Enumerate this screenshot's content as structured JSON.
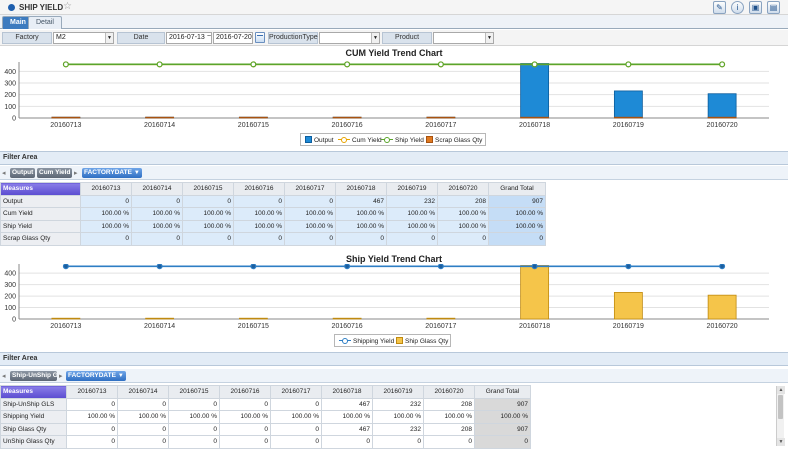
{
  "app": {
    "title": "SHIP YIELD"
  },
  "toolbar": {
    "icons": [
      "edit-icon",
      "info-icon",
      "save-icon",
      "folder-icon"
    ]
  },
  "tabs": [
    {
      "label": "Main",
      "active": true
    },
    {
      "label": "Detail",
      "active": false
    }
  ],
  "filters": {
    "factory_label": "Factory",
    "factory_value": "M2",
    "date_label": "Date",
    "date_from": "2016-07-13",
    "date_sep": "~",
    "date_to": "2016-07-20",
    "production_type_label": "ProductionType",
    "production_type_value": "",
    "product_label": "Product",
    "product_value": ""
  },
  "colors": {
    "output_bar": "#1e8ad6",
    "cum_yield_line": "#e8a400",
    "ship_yield_line": "#5aa52b",
    "scrap_bar": "#e07a20",
    "shipping_yield_line": "#2e7ec4",
    "ship_glass_bar": "#f5c54a",
    "measures_header": "#6a5bd8"
  },
  "chart_data": [
    {
      "type": "bar",
      "title": "CUM Yield Trend Chart",
      "categories": [
        "20160713",
        "20160714",
        "20160715",
        "20160716",
        "20160717",
        "20160718",
        "20160719",
        "20160720"
      ],
      "yticks": [
        0,
        100,
        200,
        300,
        400
      ],
      "ylim": [
        0,
        480
      ],
      "grid": true,
      "legend_position": "bottom",
      "series": [
        {
          "name": "Output",
          "kind": "bar",
          "values": [
            0,
            0,
            0,
            0,
            0,
            467,
            232,
            208
          ]
        },
        {
          "name": "Cum Yield",
          "kind": "line",
          "values": [
            100,
            100,
            100,
            100,
            100,
            100,
            100,
            100
          ]
        },
        {
          "name": "Ship Yield",
          "kind": "line",
          "values": [
            100,
            100,
            100,
            100,
            100,
            100,
            100,
            100
          ]
        },
        {
          "name": "Scrap Glass Qty",
          "kind": "bar",
          "values": [
            0,
            0,
            0,
            0,
            0,
            0,
            0,
            0
          ]
        }
      ]
    },
    {
      "type": "bar",
      "title": "Ship Yield Trend Chart",
      "categories": [
        "20160713",
        "20160714",
        "20160715",
        "20160716",
        "20160717",
        "20160718",
        "20160719",
        "20160720"
      ],
      "yticks": [
        0,
        100,
        200,
        300,
        400
      ],
      "ylim": [
        0,
        480
      ],
      "grid": true,
      "legend_position": "bottom",
      "series": [
        {
          "name": "Shipping Yield",
          "kind": "line",
          "values": [
            100,
            100,
            100,
            100,
            100,
            100,
            100,
            100
          ]
        },
        {
          "name": "Ship Glass Qty",
          "kind": "bar",
          "values": [
            0,
            0,
            0,
            0,
            0,
            467,
            232,
            208
          ]
        }
      ]
    }
  ],
  "section1": {
    "filter_area_label": "Filter Area",
    "chips": [
      "Output",
      "Cum Yield"
    ],
    "dim_chip": "FACTORYDATE",
    "measures_label": "Measures",
    "columns": [
      "20160713",
      "20160714",
      "20160715",
      "20160716",
      "20160717",
      "20160718",
      "20160719",
      "20160720",
      "Grand Total"
    ],
    "rows": [
      {
        "label": "Output",
        "values": [
          "0",
          "0",
          "0",
          "0",
          "0",
          "467",
          "232",
          "208",
          "907"
        ]
      },
      {
        "label": "Cum Yield",
        "values": [
          "100.00 %",
          "100.00 %",
          "100.00 %",
          "100.00 %",
          "100.00 %",
          "100.00 %",
          "100.00 %",
          "100.00 %",
          "100.00 %"
        ]
      },
      {
        "label": "Ship Yield",
        "values": [
          "100.00 %",
          "100.00 %",
          "100.00 %",
          "100.00 %",
          "100.00 %",
          "100.00 %",
          "100.00 %",
          "100.00 %",
          "100.00 %"
        ]
      },
      {
        "label": "Scrap Glass Qty",
        "values": [
          "0",
          "0",
          "0",
          "0",
          "0",
          "0",
          "0",
          "0",
          "0"
        ]
      }
    ]
  },
  "section2": {
    "filter_area_label": "Filter Area",
    "chips": [
      "Ship-UnShip GLS"
    ],
    "dim_chip": "FACTORYDATE",
    "measures_label": "Measures",
    "columns": [
      "20160713",
      "20160714",
      "20160715",
      "20160716",
      "20160717",
      "20160718",
      "20160719",
      "20160720",
      "Grand Total"
    ],
    "rows": [
      {
        "label": "Ship-UnShip GLS",
        "values": [
          "0",
          "0",
          "0",
          "0",
          "0",
          "467",
          "232",
          "208",
          "907"
        ]
      },
      {
        "label": "Shipping Yield",
        "values": [
          "100.00 %",
          "100.00 %",
          "100.00 %",
          "100.00 %",
          "100.00 %",
          "100.00 %",
          "100.00 %",
          "100.00 %",
          "100.00 %"
        ]
      },
      {
        "label": "Ship Glass Qty",
        "values": [
          "0",
          "0",
          "0",
          "0",
          "0",
          "467",
          "232",
          "208",
          "907"
        ]
      },
      {
        "label": "UnShip Glass Qty",
        "values": [
          "0",
          "0",
          "0",
          "0",
          "0",
          "0",
          "0",
          "0",
          "0"
        ]
      }
    ]
  }
}
